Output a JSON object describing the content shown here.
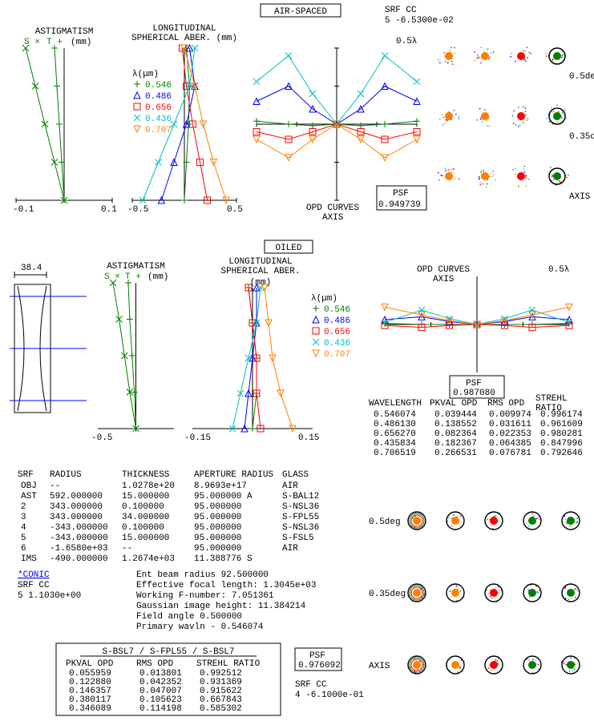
{
  "colors": {
    "green": "#008000",
    "blue": "#0000ff",
    "red": "#ff0000",
    "cyan": "#00c0c0",
    "orange": "#ff8000",
    "black": "#000000",
    "link": "#0000ee"
  },
  "header": {
    "srf_cc_label": "SRF       CC",
    "srf_cc_value": "  5   -6.5300e-02",
    "air_spaced": "AIR-SPACED",
    "oiled": "OILED"
  },
  "legend": {
    "title": "λ(μm)",
    "items": [
      {
        "marker": "+",
        "color": "green",
        "label": "0.546"
      },
      {
        "marker": "△",
        "color": "blue",
        "label": "0.486"
      },
      {
        "marker": "□",
        "color": "red",
        "label": "0.656"
      },
      {
        "marker": "×",
        "color": "cyan",
        "label": "0.436"
      },
      {
        "marker": "▽",
        "color": "orange",
        "label": "0.707"
      }
    ]
  },
  "section_air": {
    "astig": {
      "title": "ASTIGMATISM",
      "subtitle_s": "S ×",
      "subtitle_t": "T +",
      "subtitle_mm": "(mm)",
      "xmin": -0.1,
      "xmax": 0.1,
      "xticklabels": [
        "-0.1",
        "0.1"
      ],
      "s_line_x": [
        0.0,
        -0.02,
        -0.04,
        -0.06,
        -0.08
      ],
      "s_line_y": [
        0.0,
        0.25,
        0.5,
        0.75,
        1.0
      ],
      "t_line_x": [
        0.0,
        -0.005,
        -0.01,
        -0.015,
        -0.02
      ],
      "t_line_y": [
        0.0,
        0.25,
        0.5,
        0.75,
        1.0
      ],
      "s_color": "green",
      "t_color": "green"
    },
    "spher": {
      "title1": "LONGITUDINAL",
      "title2": "SPHERICAL ABER. (mm)",
      "xmin": -0.5,
      "xmax": 0.5,
      "xticklabels": [
        "-0.5",
        "0.5"
      ],
      "series": {
        "green": {
          "x": [
            0.0,
            0.02,
            0.04,
            0.05,
            0.02
          ],
          "y": [
            0,
            0.25,
            0.5,
            0.75,
            1.0
          ]
        },
        "blue": {
          "x": [
            -0.22,
            -0.1,
            0.02,
            0.1,
            0.05
          ],
          "y": [
            0,
            0.25,
            0.5,
            0.75,
            1.0
          ]
        },
        "red": {
          "x": [
            0.22,
            0.15,
            0.08,
            0.02,
            -0.02
          ],
          "y": [
            0,
            0.25,
            0.5,
            0.75,
            1.0
          ]
        },
        "cyan": {
          "x": [
            -0.4,
            -0.25,
            -0.1,
            0.05,
            0.1
          ],
          "y": [
            0,
            0.25,
            0.5,
            0.75,
            1.0
          ]
        },
        "orange": {
          "x": [
            0.4,
            0.28,
            0.18,
            0.1,
            0.0
          ],
          "y": [
            0,
            0.25,
            0.5,
            0.75,
            1.0
          ]
        }
      }
    },
    "opd": {
      "title": "OPD CURVES\nAXIS",
      "ylabel": "0.5λ",
      "xlim": [
        -1,
        1
      ],
      "ylim": [
        -0.5,
        0.5
      ],
      "series": {
        "green": {
          "x": [
            -1,
            -0.6,
            -0.3,
            0,
            0.3,
            0.6,
            1
          ],
          "y": [
            0.02,
            0.0,
            -0.01,
            0.0,
            -0.01,
            0.0,
            0.02
          ]
        },
        "blue": {
          "x": [
            -1,
            -0.6,
            -0.3,
            0,
            0.3,
            0.6,
            1
          ],
          "y": [
            0.15,
            0.25,
            0.1,
            0.0,
            0.1,
            0.25,
            0.15
          ]
        },
        "red": {
          "x": [
            -1,
            -0.6,
            -0.3,
            0,
            0.3,
            0.6,
            1
          ],
          "y": [
            -0.05,
            -0.1,
            -0.05,
            0.0,
            -0.05,
            -0.1,
            -0.05
          ]
        },
        "cyan": {
          "x": [
            -1,
            -0.6,
            -0.3,
            0,
            0.3,
            0.6,
            1
          ],
          "y": [
            0.28,
            0.45,
            0.2,
            0.0,
            0.2,
            0.45,
            0.28
          ]
        },
        "orange": {
          "x": [
            -1,
            -0.6,
            -0.3,
            0,
            0.3,
            0.6,
            1
          ],
          "y": [
            -0.1,
            -0.22,
            -0.1,
            0.0,
            -0.1,
            -0.22,
            -0.1
          ]
        }
      },
      "psf_label": "PSF",
      "psf_value": "0.949739"
    },
    "spots": {
      "rows": [
        {
          "label": "0.5deg"
        },
        {
          "label": "0.35deg"
        },
        {
          "label": "AXIS"
        }
      ]
    }
  },
  "section_oil": {
    "lens_width_label": "38.4",
    "astig": {
      "title": "ASTIGMATISM",
      "subtitle_s": "S ×",
      "subtitle_t": "T +",
      "subtitle_mm": "(mm)",
      "xmin": -0.5,
      "xmax": 0.5,
      "xticklabels": [
        "-0.5"
      ],
      "s_line_x": [
        0.0,
        -0.08,
        -0.15,
        -0.22,
        -0.3
      ],
      "s_line_y": [
        0.0,
        0.25,
        0.5,
        0.75,
        1.0
      ],
      "t_line_x": [
        0.0,
        -0.02,
        -0.05,
        -0.08,
        -0.1
      ],
      "t_line_y": [
        0.0,
        0.25,
        0.5,
        0.75,
        1.0
      ],
      "s_color": "green",
      "t_color": "green"
    },
    "spher": {
      "title1": "LONGITUDINAL",
      "title2": "SPHERICAL ABER.",
      "subtitle_mm": "(mm)",
      "xmin": -0.15,
      "xmax": 0.15,
      "xticklabels": [
        "-0.15",
        "0.15"
      ],
      "series": {
        "green": {
          "x": [
            0.0,
            0.01,
            0.01,
            0.0,
            -0.01
          ],
          "y": [
            0,
            0.25,
            0.5,
            0.75,
            1.0
          ]
        },
        "blue": {
          "x": [
            -0.02,
            -0.01,
            0.0,
            0.01,
            0.01
          ],
          "y": [
            0,
            0.25,
            0.5,
            0.75,
            1.0
          ]
        },
        "red": {
          "x": [
            0.02,
            0.01,
            0.01,
            0.0,
            -0.01
          ],
          "y": [
            0,
            0.25,
            0.5,
            0.75,
            1.0
          ]
        },
        "cyan": {
          "x": [
            -0.05,
            -0.03,
            -0.01,
            0.01,
            0.02
          ],
          "y": [
            0,
            0.25,
            0.5,
            0.75,
            1.0
          ]
        },
        "orange": {
          "x": [
            0.1,
            0.07,
            0.05,
            0.04,
            0.03
          ],
          "y": [
            0,
            0.25,
            0.5,
            0.75,
            1.0
          ]
        }
      }
    },
    "opd": {
      "title": "OPD CURVES\nAXIS",
      "ylabel": "0.5λ",
      "xlim": [
        -1,
        1
      ],
      "ylim": [
        -0.5,
        0.5
      ],
      "series": {
        "green": {
          "x": [
            -1,
            -0.6,
            -0.3,
            0,
            0.3,
            0.6,
            1
          ],
          "y": [
            0.01,
            0.0,
            0.0,
            0.0,
            0.0,
            0.0,
            0.01
          ]
        },
        "blue": {
          "x": [
            -1,
            -0.6,
            -0.3,
            0,
            0.3,
            0.6,
            1
          ],
          "y": [
            0.05,
            0.08,
            0.03,
            0.0,
            0.03,
            0.08,
            0.05
          ]
        },
        "red": {
          "x": [
            -1,
            -0.6,
            -0.3,
            0,
            0.3,
            0.6,
            1
          ],
          "y": [
            -0.01,
            -0.03,
            -0.01,
            0.0,
            -0.01,
            -0.03,
            -0.01
          ]
        },
        "cyan": {
          "x": [
            -1,
            -0.6,
            -0.3,
            0,
            0.3,
            0.6,
            1
          ],
          "y": [
            0.02,
            0.15,
            0.06,
            0.0,
            0.06,
            0.15,
            0.02
          ]
        },
        "orange": {
          "x": [
            -1,
            -0.6,
            -0.3,
            0,
            0.3,
            0.6,
            1
          ],
          "y": [
            0.18,
            0.1,
            0.04,
            0.0,
            0.04,
            0.1,
            0.18
          ]
        }
      },
      "psf_label": "PSF",
      "psf_value": "0.987080"
    },
    "spots": {
      "rows": [
        {
          "label": "0.5deg"
        },
        {
          "label": "0.35deg"
        },
        {
          "label": "AXIS"
        }
      ],
      "ring_colors": [
        "orange",
        "red",
        "green",
        "cyan",
        "blue"
      ]
    },
    "strehl_table": {
      "headers": [
        "WAVELENGTH",
        "PKVAL OPD",
        "RMS OPD",
        "STREHL\nRATIO"
      ],
      "rows": [
        [
          "0.546074",
          "0.039444",
          "0.009974",
          "0.996174"
        ],
        [
          "0.486130",
          "0.138552",
          "0.031611",
          "0.961609"
        ],
        [
          "0.656270",
          "0.082364",
          "0.022353",
          "0.980281"
        ],
        [
          "0.435834",
          "0.182367",
          "0.064385",
          "0.847996"
        ],
        [
          "0.706519",
          "0.266531",
          "0.076781",
          "0.792646"
        ]
      ]
    }
  },
  "surface_table": {
    "headers": [
      "SRF",
      "RADIUS",
      "THICKNESS",
      "APERTURE RADIUS",
      "GLASS"
    ],
    "rows": [
      [
        "OBJ",
        "--",
        "1.0278e+20",
        "8.9693e+17",
        "AIR"
      ],
      [
        "AST",
        "592.000000",
        "15.000000",
        "95.000000 A",
        "S-BAL12"
      ],
      [
        "2",
        "343.000000",
        "0.100000",
        "95.000000",
        "S-NSL36"
      ],
      [
        "3",
        "343.000000",
        "34.000000",
        "95.000000",
        "S-FPL55"
      ],
      [
        "4",
        "-343.000000",
        "0.100000",
        "95.000000",
        "S-NSL36"
      ],
      [
        "5",
        "-343.000000",
        "15.000000",
        "95.000000",
        "S-FSL5"
      ],
      [
        "6",
        "-1.6580e+03",
        "--",
        "95.000000",
        "AIR"
      ],
      [
        "IMS",
        "-490.000000",
        "1.2674e+03",
        "11.388776 S",
        ""
      ]
    ]
  },
  "conic": {
    "link": "*CONIC",
    "header": "SRF       CC",
    "row": "  5   1.1030e+00"
  },
  "system_params": [
    "Ent beam radius   92.500000",
    "Effective focal length:   1.3045e+03",
    "Working F-number:         7.051361",
    "Gaussian image height:   11.384214",
    "Field angle       0.500000",
    "Primary wavln   - 0.546074"
  ],
  "alt_table": {
    "title": "S-BSL7 / S-FPL55 / S-BSL7",
    "headers": [
      "PKVAL OPD",
      "RMS OPD",
      "STREHL RATIO"
    ],
    "rows": [
      [
        "0.055959",
        "0.013801",
        "0.992512"
      ],
      [
        "0.122880",
        "0.042352",
        "0.931369"
      ],
      [
        "0.146357",
        "0.047007",
        "0.915622"
      ],
      [
        "0.380117",
        "0.105623",
        "0.667843"
      ],
      [
        "0.346089",
        "0.114198",
        "0.585302"
      ]
    ],
    "psf_label": "PSF",
    "psf_value": "0.976092",
    "srf_cc_label": "SRF       CC",
    "srf_cc_value": "  4   -6.1000e-01"
  }
}
